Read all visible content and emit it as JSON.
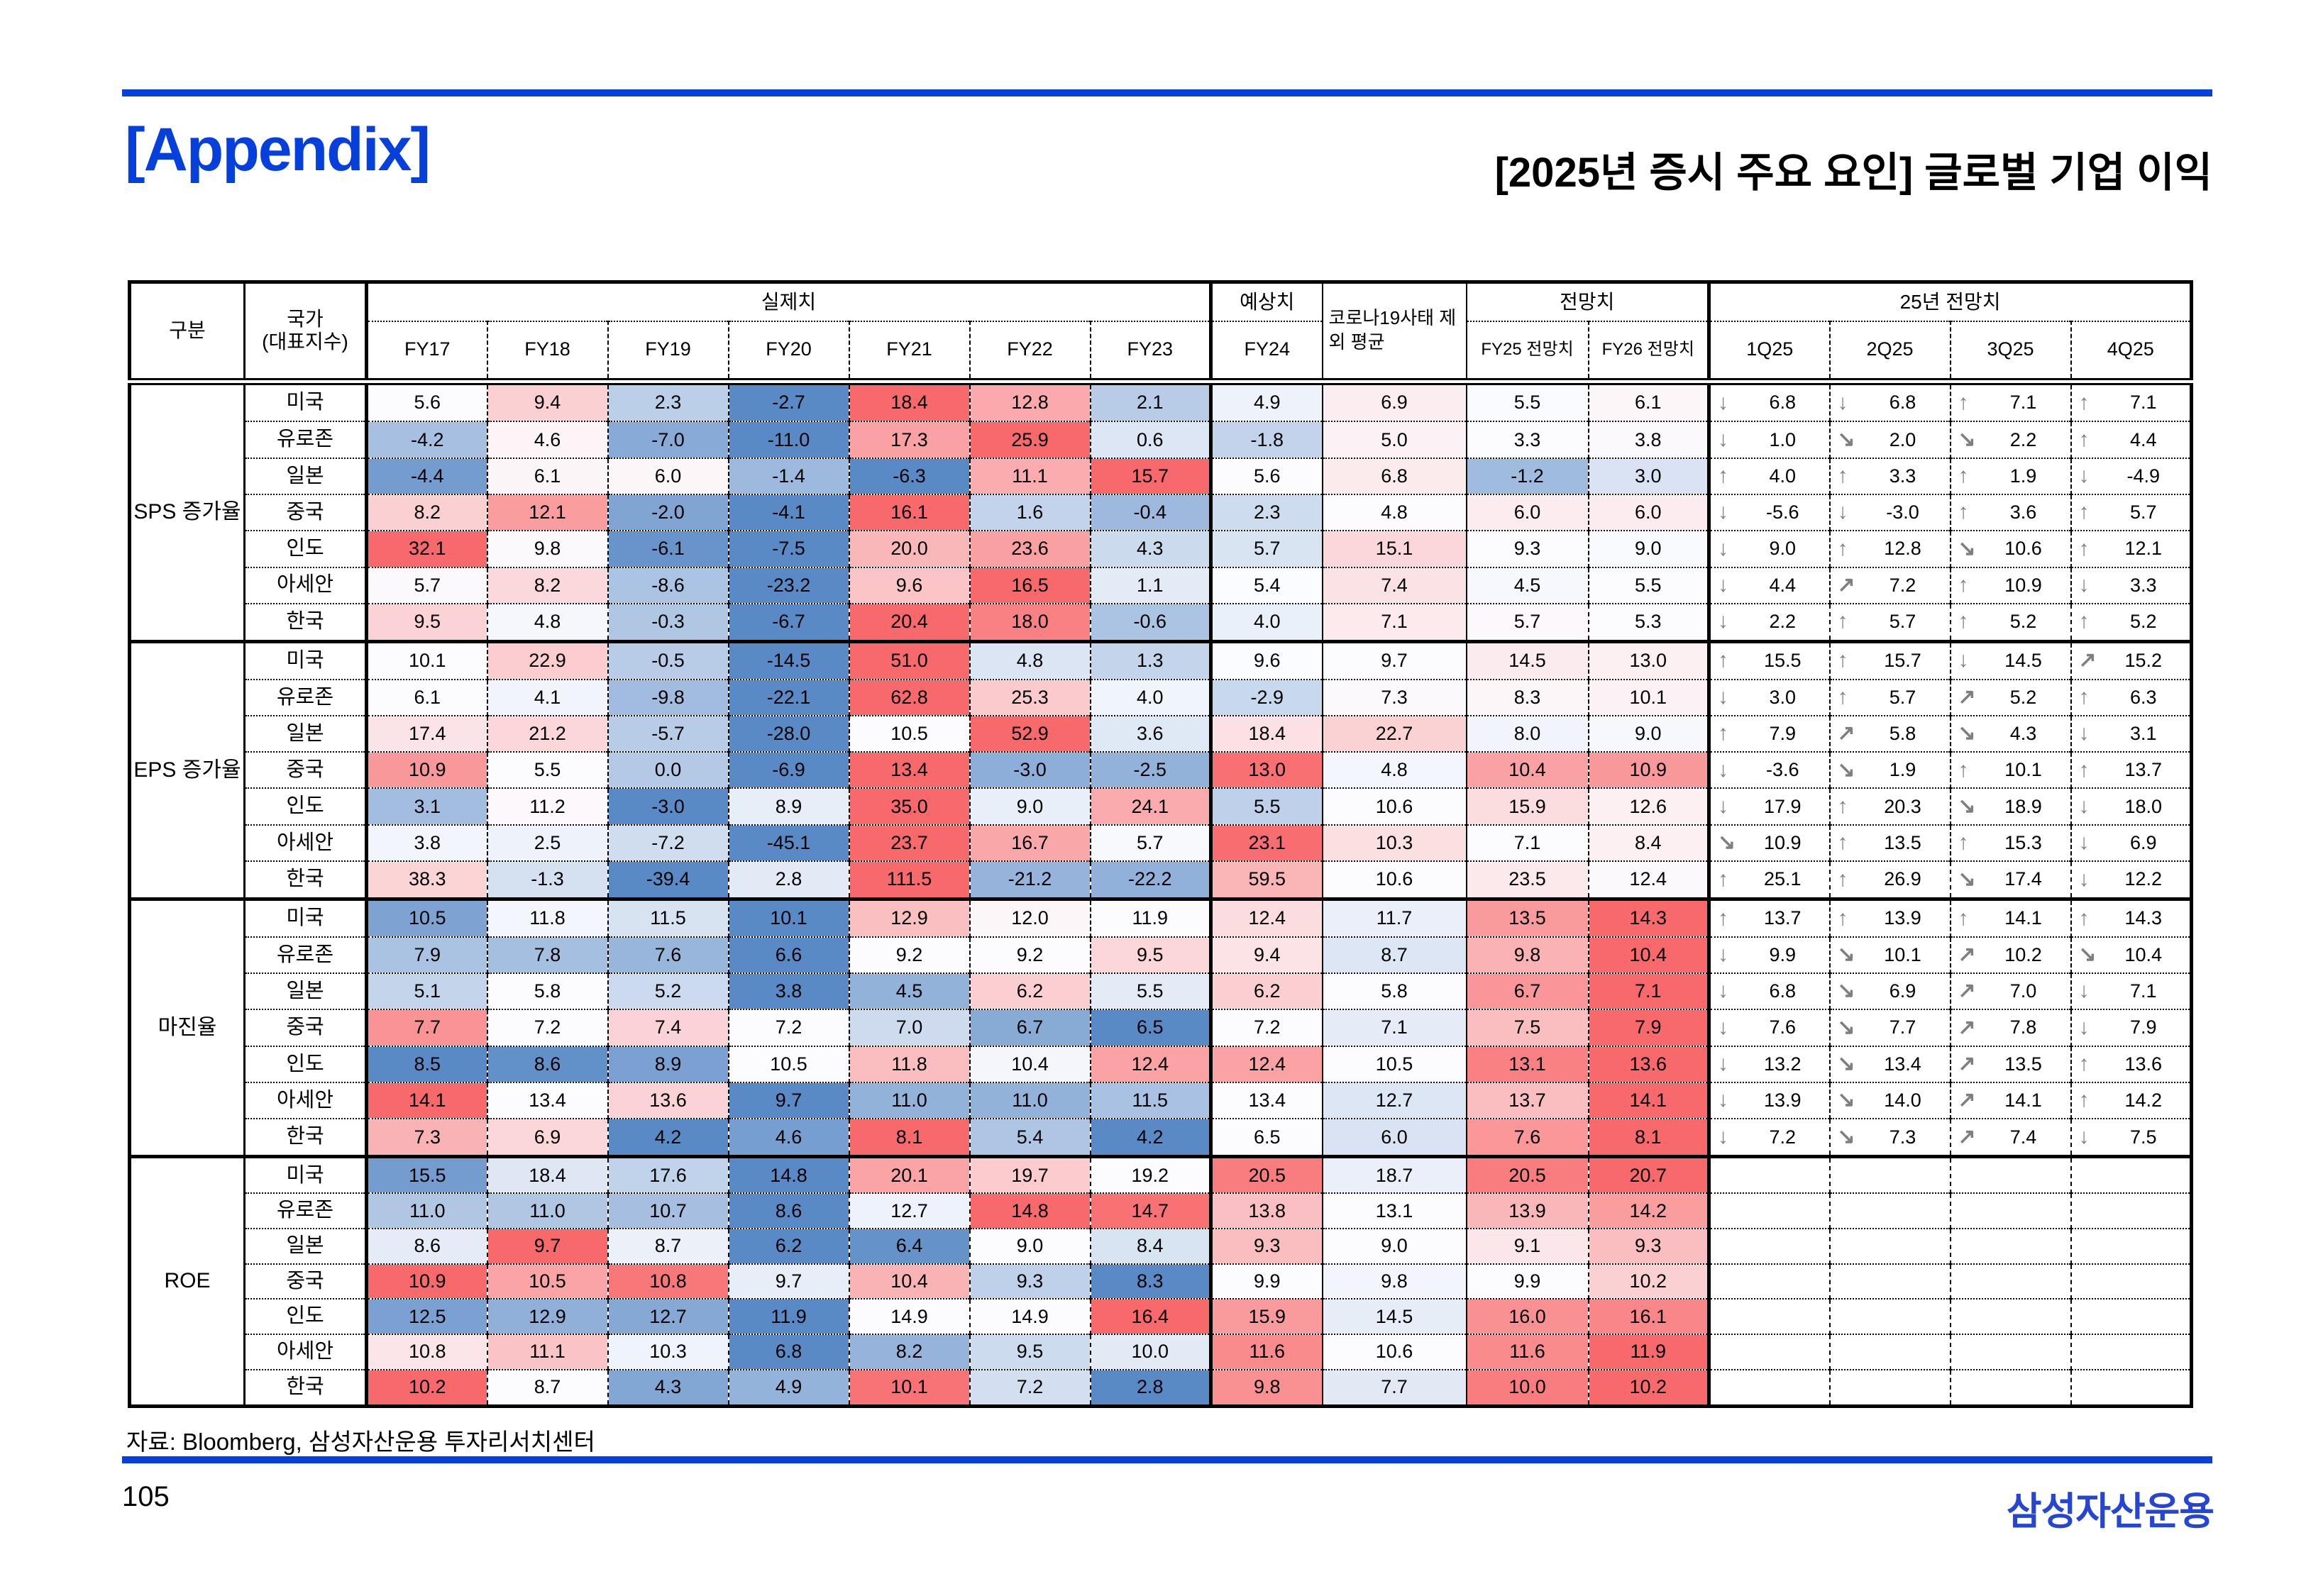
{
  "slide": {
    "appendix_title": "[Appendix]",
    "main_title": "[2025년 증시 주요 요인] 글로벌 기업 이익",
    "source_note": "자료: Bloomberg, 삼성자산운용 투자리서치센터",
    "page_number": "105",
    "logo_text": "삼성자산운용"
  },
  "colors": {
    "accent_blue": "#0540dc",
    "logo_blue": "#2646d2",
    "arrow_gray": "#7f7f7f",
    "heat_min_blue": "#5A8AC6",
    "heat_mid_white": "#FCFCFF",
    "heat_max_red": "#F8696B"
  },
  "table": {
    "corner_label": "구분",
    "country_label_line1": "국가",
    "country_label_line2": "(대표지수)",
    "groups": {
      "actual": "실제치",
      "expected": "예상치",
      "corona": "코로나19사태 제외 평균",
      "forecast": "전망치",
      "y25_forecast": "25년 전망치"
    },
    "columns": {
      "actual": [
        "FY17",
        "FY18",
        "FY19",
        "FY20",
        "FY21",
        "FY22",
        "FY23"
      ],
      "expected": [
        "FY24"
      ],
      "forecast": [
        "FY25 전망치",
        "FY26 전망치"
      ],
      "quarters": [
        "1Q25",
        "2Q25",
        "3Q25",
        "4Q25"
      ]
    },
    "value_column_order": [
      "FY17",
      "FY18",
      "FY19",
      "FY20",
      "FY21",
      "FY22",
      "FY23",
      "FY24",
      "코로나19사태 제외 평균",
      "FY25 전망치",
      "FY26 전망치"
    ],
    "sections": [
      {
        "label": "SPS 증가율",
        "rows": [
          {
            "country": "미국",
            "values": [
              5.6,
              9.4,
              2.3,
              -2.7,
              18.4,
              12.8,
              2.1,
              4.9,
              6.9,
              5.5,
              6.1
            ],
            "quarters": [
              {
                "dir": "down",
                "value": 6.8
              },
              {
                "dir": "down",
                "value": 6.8
              },
              {
                "dir": "up",
                "value": 7.1
              },
              {
                "dir": "up",
                "value": 7.1
              }
            ]
          },
          {
            "country": "유로존",
            "values": [
              -4.2,
              4.6,
              -7.0,
              -11.0,
              17.3,
              25.9,
              0.6,
              -1.8,
              5.0,
              3.3,
              3.8
            ],
            "quarters": [
              {
                "dir": "down",
                "value": 1.0
              },
              {
                "dir": "downright",
                "value": 2.0
              },
              {
                "dir": "downright",
                "value": 2.2
              },
              {
                "dir": "up",
                "value": 4.4
              }
            ]
          },
          {
            "country": "일본",
            "values": [
              -4.4,
              6.1,
              6.0,
              -1.4,
              -6.3,
              11.1,
              15.7,
              5.6,
              6.8,
              -1.2,
              3.0
            ],
            "quarters": [
              {
                "dir": "up",
                "value": 4.0
              },
              {
                "dir": "up",
                "value": 3.3
              },
              {
                "dir": "up",
                "value": 1.9
              },
              {
                "dir": "down",
                "value": -4.9
              }
            ]
          },
          {
            "country": "중국",
            "values": [
              8.2,
              12.1,
              -2.0,
              -4.1,
              16.1,
              1.6,
              -0.4,
              2.3,
              4.8,
              6.0,
              6.0
            ],
            "quarters": [
              {
                "dir": "down",
                "value": -5.6
              },
              {
                "dir": "down",
                "value": -3.0
              },
              {
                "dir": "up",
                "value": 3.6
              },
              {
                "dir": "up",
                "value": 5.7
              }
            ]
          },
          {
            "country": "인도",
            "values": [
              32.1,
              9.8,
              -6.1,
              -7.5,
              20.0,
              23.6,
              4.3,
              5.7,
              15.1,
              9.3,
              9.0
            ],
            "quarters": [
              {
                "dir": "down",
                "value": 9.0
              },
              {
                "dir": "up",
                "value": 12.8
              },
              {
                "dir": "downright",
                "value": 10.6
              },
              {
                "dir": "up",
                "value": 12.1
              }
            ]
          },
          {
            "country": "아세안",
            "values": [
              5.7,
              8.2,
              -8.6,
              -23.2,
              9.6,
              16.5,
              1.1,
              5.4,
              7.4,
              4.5,
              5.5
            ],
            "quarters": [
              {
                "dir": "down",
                "value": 4.4
              },
              {
                "dir": "upright",
                "value": 7.2
              },
              {
                "dir": "up",
                "value": 10.9
              },
              {
                "dir": "down",
                "value": 3.3
              }
            ]
          },
          {
            "country": "한국",
            "values": [
              9.5,
              4.8,
              -0.3,
              -6.7,
              20.4,
              18.0,
              -0.6,
              4.0,
              7.1,
              5.7,
              5.3
            ],
            "quarters": [
              {
                "dir": "down",
                "value": 2.2
              },
              {
                "dir": "up",
                "value": 5.7
              },
              {
                "dir": "up",
                "value": 5.2
              },
              {
                "dir": "up",
                "value": 5.2
              }
            ]
          }
        ]
      },
      {
        "label": "EPS 증가율",
        "rows": [
          {
            "country": "미국",
            "values": [
              10.1,
              22.9,
              -0.5,
              -14.5,
              51.0,
              4.8,
              1.3,
              9.6,
              9.7,
              14.5,
              13.0
            ],
            "quarters": [
              {
                "dir": "up",
                "value": 15.5
              },
              {
                "dir": "up",
                "value": 15.7
              },
              {
                "dir": "down",
                "value": 14.5
              },
              {
                "dir": "upright",
                "value": 15.2
              }
            ]
          },
          {
            "country": "유로존",
            "values": [
              6.1,
              4.1,
              -9.8,
              -22.1,
              62.8,
              25.3,
              4.0,
              -2.9,
              7.3,
              8.3,
              10.1
            ],
            "quarters": [
              {
                "dir": "down",
                "value": 3.0
              },
              {
                "dir": "up",
                "value": 5.7
              },
              {
                "dir": "upright",
                "value": 5.2
              },
              {
                "dir": "up",
                "value": 6.3
              }
            ]
          },
          {
            "country": "일본",
            "values": [
              17.4,
              21.2,
              -5.7,
              -28.0,
              10.5,
              52.9,
              3.6,
              18.4,
              22.7,
              8.0,
              9.0
            ],
            "quarters": [
              {
                "dir": "up",
                "value": 7.9
              },
              {
                "dir": "upright",
                "value": 5.8
              },
              {
                "dir": "downright",
                "value": 4.3
              },
              {
                "dir": "down",
                "value": 3.1
              }
            ]
          },
          {
            "country": "중국",
            "values": [
              10.9,
              5.5,
              0.0,
              -6.9,
              13.4,
              -3.0,
              -2.5,
              13.0,
              4.8,
              10.4,
              10.9
            ],
            "quarters": [
              {
                "dir": "down",
                "value": -3.6
              },
              {
                "dir": "downright",
                "value": 1.9
              },
              {
                "dir": "up",
                "value": 10.1
              },
              {
                "dir": "up",
                "value": 13.7
              }
            ]
          },
          {
            "country": "인도",
            "values": [
              3.1,
              11.2,
              -3.0,
              8.9,
              35.0,
              9.0,
              24.1,
              5.5,
              10.6,
              15.9,
              12.6
            ],
            "quarters": [
              {
                "dir": "down",
                "value": 17.9
              },
              {
                "dir": "up",
                "value": 20.3
              },
              {
                "dir": "downright",
                "value": 18.9
              },
              {
                "dir": "down",
                "value": 18.0
              }
            ]
          },
          {
            "country": "아세안",
            "values": [
              3.8,
              2.5,
              -7.2,
              -45.1,
              23.7,
              16.7,
              5.7,
              23.1,
              10.3,
              7.1,
              8.4
            ],
            "quarters": [
              {
                "dir": "downright",
                "value": 10.9
              },
              {
                "dir": "up",
                "value": 13.5
              },
              {
                "dir": "up",
                "value": 15.3
              },
              {
                "dir": "down",
                "value": 6.9
              }
            ]
          },
          {
            "country": "한국",
            "values": [
              38.3,
              -1.3,
              -39.4,
              2.8,
              111.5,
              -21.2,
              -22.2,
              59.5,
              10.6,
              23.5,
              12.4
            ],
            "quarters": [
              {
                "dir": "up",
                "value": 25.1
              },
              {
                "dir": "up",
                "value": 26.9
              },
              {
                "dir": "downright",
                "value": 17.4
              },
              {
                "dir": "down",
                "value": 12.2
              }
            ]
          }
        ]
      },
      {
        "label": "마진율",
        "rows": [
          {
            "country": "미국",
            "values": [
              10.5,
              11.8,
              11.5,
              10.1,
              12.9,
              12.0,
              11.9,
              12.4,
              11.7,
              13.5,
              14.3
            ],
            "quarters": [
              {
                "dir": "up",
                "value": 13.7
              },
              {
                "dir": "up",
                "value": 13.9
              },
              {
                "dir": "up",
                "value": 14.1
              },
              {
                "dir": "up",
                "value": 14.3
              }
            ]
          },
          {
            "country": "유로존",
            "values": [
              7.9,
              7.8,
              7.6,
              6.6,
              9.2,
              9.2,
              9.5,
              9.4,
              8.7,
              9.8,
              10.4
            ],
            "quarters": [
              {
                "dir": "down",
                "value": 9.9
              },
              {
                "dir": "downright",
                "value": 10.1
              },
              {
                "dir": "upright",
                "value": 10.2
              },
              {
                "dir": "downright",
                "value": 10.4
              }
            ]
          },
          {
            "country": "일본",
            "values": [
              5.1,
              5.8,
              5.2,
              3.8,
              4.5,
              6.2,
              5.5,
              6.2,
              5.8,
              6.7,
              7.1
            ],
            "quarters": [
              {
                "dir": "down",
                "value": 6.8
              },
              {
                "dir": "downright",
                "value": 6.9
              },
              {
                "dir": "upright",
                "value": 7.0
              },
              {
                "dir": "down",
                "value": 7.1
              }
            ]
          },
          {
            "country": "중국",
            "values": [
              7.7,
              7.2,
              7.4,
              7.2,
              7.0,
              6.7,
              6.5,
              7.2,
              7.1,
              7.5,
              7.9
            ],
            "quarters": [
              {
                "dir": "down",
                "value": 7.6
              },
              {
                "dir": "downright",
                "value": 7.7
              },
              {
                "dir": "upright",
                "value": 7.8
              },
              {
                "dir": "down",
                "value": 7.9
              }
            ]
          },
          {
            "country": "인도",
            "values": [
              8.5,
              8.6,
              8.9,
              10.5,
              11.8,
              10.4,
              12.4,
              12.4,
              10.5,
              13.1,
              13.6
            ],
            "quarters": [
              {
                "dir": "down",
                "value": 13.2
              },
              {
                "dir": "downright",
                "value": 13.4
              },
              {
                "dir": "upright",
                "value": 13.5
              },
              {
                "dir": "up",
                "value": 13.6
              }
            ]
          },
          {
            "country": "아세안",
            "values": [
              14.1,
              13.4,
              13.6,
              9.7,
              11.0,
              11.0,
              11.5,
              13.4,
              12.7,
              13.7,
              14.1
            ],
            "quarters": [
              {
                "dir": "down",
                "value": 13.9
              },
              {
                "dir": "downright",
                "value": 14.0
              },
              {
                "dir": "upright",
                "value": 14.1
              },
              {
                "dir": "up",
                "value": 14.2
              }
            ]
          },
          {
            "country": "한국",
            "values": [
              7.3,
              6.9,
              4.2,
              4.6,
              8.1,
              5.4,
              4.2,
              6.5,
              6.0,
              7.6,
              8.1
            ],
            "quarters": [
              {
                "dir": "down",
                "value": 7.2
              },
              {
                "dir": "downright",
                "value": 7.3
              },
              {
                "dir": "upright",
                "value": 7.4
              },
              {
                "dir": "down",
                "value": 7.5
              }
            ]
          }
        ]
      },
      {
        "label": "ROE",
        "rows": [
          {
            "country": "미국",
            "values": [
              15.5,
              18.4,
              17.6,
              14.8,
              20.1,
              19.7,
              19.2,
              20.5,
              18.7,
              20.5,
              20.7
            ],
            "quarters": []
          },
          {
            "country": "유로존",
            "values": [
              11.0,
              11.0,
              10.7,
              8.6,
              12.7,
              14.8,
              14.7,
              13.8,
              13.1,
              13.9,
              14.2
            ],
            "quarters": []
          },
          {
            "country": "일본",
            "values": [
              8.6,
              9.7,
              8.7,
              6.2,
              6.4,
              9.0,
              8.4,
              9.3,
              9.0,
              9.1,
              9.3
            ],
            "quarters": []
          },
          {
            "country": "중국",
            "values": [
              10.9,
              10.5,
              10.8,
              9.7,
              10.4,
              9.3,
              8.3,
              9.9,
              9.8,
              9.9,
              10.2
            ],
            "quarters": []
          },
          {
            "country": "인도",
            "values": [
              12.5,
              12.9,
              12.7,
              11.9,
              14.9,
              14.9,
              16.4,
              15.9,
              14.5,
              16.0,
              16.1
            ],
            "quarters": []
          },
          {
            "country": "아세안",
            "values": [
              10.8,
              11.1,
              10.3,
              6.8,
              8.2,
              9.5,
              10.0,
              11.6,
              10.6,
              11.6,
              11.9
            ],
            "quarters": []
          },
          {
            "country": "한국",
            "values": [
              10.2,
              8.7,
              4.3,
              4.9,
              10.1,
              7.2,
              2.8,
              9.8,
              7.7,
              10.0,
              10.2
            ],
            "quarters": []
          }
        ]
      }
    ]
  }
}
